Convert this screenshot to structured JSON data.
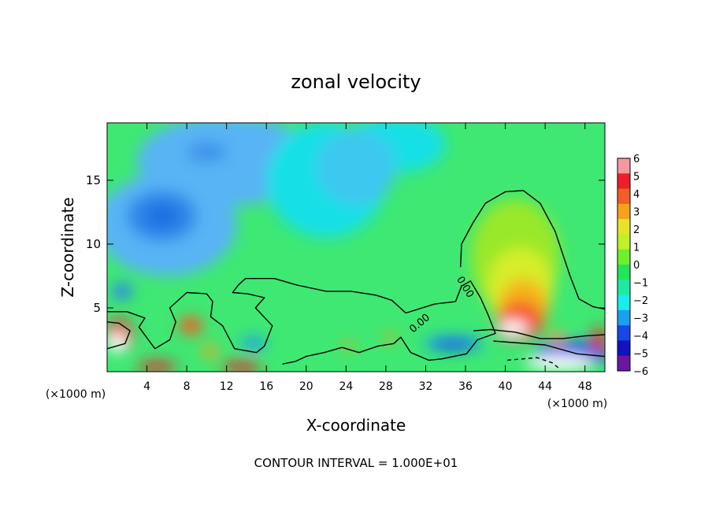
{
  "chart_data": {
    "type": "heatmap",
    "title": "zonal velocity",
    "xlabel": "X-coordinate",
    "ylabel": "Z-coordinate",
    "x_unit_left": "(×1000 m)",
    "x_unit_right": "(×1000 m)",
    "xlim": [
      0,
      50
    ],
    "ylim": [
      0,
      19.5
    ],
    "x_ticks": [
      4,
      8,
      12,
      16,
      20,
      24,
      28,
      32,
      36,
      40,
      44,
      48
    ],
    "y_ticks": [
      5,
      10,
      15
    ],
    "footer": "CONTOUR INTERVAL = 1.000E+01",
    "contour_labels": [
      {
        "text": "0.00",
        "x": 31.6,
        "y": 3.6,
        "angle": -40
      },
      {
        "text": "0.00",
        "x": 35.7,
        "y": 6.5,
        "angle": 58
      }
    ],
    "colorbar": {
      "ticks": [
        "6",
        "5",
        "4",
        "3",
        "2",
        "1",
        "0",
        "−1",
        "−2",
        "−3",
        "−4",
        "−5",
        "−6"
      ],
      "colors": [
        "#f39aa0",
        "#ee1f2a",
        "#f35d28",
        "#f7a21a",
        "#e7e32a",
        "#bff02a",
        "#6ef02a",
        "#22e45a",
        "#1fe9a0",
        "#19ecea",
        "#1b9ff0",
        "#1548e6",
        "#1212c2",
        "#6a16a0"
      ]
    },
    "blobs": [
      {
        "x": 6,
        "y": 11.5,
        "rx": 7,
        "ry": 4,
        "color": "#58b4f5"
      },
      {
        "x": 12,
        "y": 16.5,
        "rx": 9,
        "ry": 3.5,
        "color": "#58b4f5"
      },
      {
        "x": 5.5,
        "y": 12.2,
        "rx": 3.5,
        "ry": 2,
        "color": "#2f86e8"
      },
      {
        "x": 5.5,
        "y": 12.2,
        "rx": 1.6,
        "ry": 0.9,
        "color": "#1f6de0"
      },
      {
        "x": 10,
        "y": 17.2,
        "rx": 2,
        "ry": 0.8,
        "color": "#3e93ea"
      },
      {
        "x": 1.5,
        "y": 6.3,
        "rx": 1.0,
        "ry": 0.7,
        "color": "#2f86e8"
      },
      {
        "x": 22,
        "y": 15,
        "rx": 6,
        "ry": 4.5,
        "color": "#19e0e6"
      },
      {
        "x": 29,
        "y": 17.8,
        "rx": 5,
        "ry": 2.2,
        "color": "#19e0e6"
      },
      {
        "x": 25,
        "y": 16,
        "rx": 4,
        "ry": 3,
        "color": "#3ec8f0"
      },
      {
        "x": 41,
        "y": 9,
        "rx": 4.5,
        "ry": 4.5,
        "color": "#9ae82a"
      },
      {
        "x": 41.5,
        "y": 6.5,
        "rx": 3.3,
        "ry": 3.2,
        "color": "#d6ee2a"
      },
      {
        "x": 41.8,
        "y": 5.0,
        "rx": 2.5,
        "ry": 2.3,
        "color": "#f5b21a"
      },
      {
        "x": 41.5,
        "y": 4.0,
        "rx": 2.3,
        "ry": 1.5,
        "color": "#f55a28"
      },
      {
        "x": 41,
        "y": 3.3,
        "rx": 2.0,
        "ry": 0.9,
        "color": "#ee1f2a"
      },
      {
        "x": 40.8,
        "y": 3.4,
        "rx": 1.5,
        "ry": 0.6,
        "color": "#ffffff"
      },
      {
        "x": 34.8,
        "y": 2.2,
        "rx": 3.0,
        "ry": 0.6,
        "color": "#1b9ff0"
      },
      {
        "x": 34.8,
        "y": 2.1,
        "rx": 2.1,
        "ry": 0.35,
        "color": "#1548e6"
      },
      {
        "x": 1.2,
        "y": 2.8,
        "rx": 1.4,
        "ry": 1.3,
        "color": "#ee1f2a"
      },
      {
        "x": 1.0,
        "y": 2.3,
        "rx": 1.0,
        "ry": 0.8,
        "color": "#ffffff"
      },
      {
        "x": 8.4,
        "y": 3.6,
        "rx": 1.2,
        "ry": 0.7,
        "color": "#f35d28"
      },
      {
        "x": 10.3,
        "y": 1.6,
        "rx": 0.8,
        "ry": 0.5,
        "color": "#f7a21a"
      },
      {
        "x": 14.7,
        "y": 2.2,
        "rx": 1.3,
        "ry": 0.5,
        "color": "#1b9ff0"
      },
      {
        "x": 5.0,
        "y": 0.4,
        "rx": 2.0,
        "ry": 0.4,
        "color": "#ee1f2a"
      },
      {
        "x": 13.5,
        "y": 0.4,
        "rx": 2.0,
        "ry": 0.4,
        "color": "#ee1f2a"
      },
      {
        "x": 24.2,
        "y": 2.0,
        "rx": 0.6,
        "ry": 0.3,
        "color": "#f7a21a"
      },
      {
        "x": 28.4,
        "y": 2.6,
        "rx": 0.5,
        "ry": 0.4,
        "color": "#f7a21a"
      },
      {
        "x": 46.8,
        "y": 1.4,
        "rx": 3.8,
        "ry": 1.0,
        "color": "#1548e6"
      },
      {
        "x": 45.5,
        "y": 0.7,
        "rx": 3.5,
        "ry": 0.6,
        "color": "#ffffff"
      },
      {
        "x": 49.4,
        "y": 2.5,
        "rx": 0.7,
        "ry": 1.0,
        "color": "#ee1f2a"
      },
      {
        "x": 45.2,
        "y": 2.6,
        "rx": 0.9,
        "ry": 0.5,
        "color": "#f7a21a"
      }
    ],
    "contours": [
      {
        "style": "solid",
        "points": [
          [
            0,
            4.7
          ],
          [
            2,
            4.7
          ],
          [
            3.8,
            4.2
          ],
          [
            3.2,
            3.5
          ],
          [
            4.8,
            1.8
          ],
          [
            6.3,
            2.5
          ],
          [
            6.9,
            3.9
          ],
          [
            6.3,
            5
          ],
          [
            8,
            6.2
          ],
          [
            10,
            6.1
          ],
          [
            10.6,
            5.5
          ],
          [
            10.4,
            4.3
          ],
          [
            11.6,
            3.6
          ],
          [
            12.8,
            1.8
          ],
          [
            15,
            1.5
          ],
          [
            15.8,
            2
          ],
          [
            16.6,
            3.6
          ],
          [
            14.9,
            5
          ],
          [
            15.8,
            5.8
          ],
          [
            14.1,
            6.1
          ],
          [
            12.6,
            6.2
          ],
          [
            13.2,
            6.8
          ],
          [
            13.9,
            7.3
          ],
          [
            16.8,
            7.3
          ],
          [
            19,
            6.8
          ],
          [
            22,
            6.3
          ],
          [
            24.5,
            6.3
          ],
          [
            27,
            6
          ],
          [
            28.6,
            5.6
          ],
          [
            30,
            4.6
          ],
          [
            32.9,
            5.3
          ],
          [
            35,
            5.5
          ],
          [
            35.6,
            6.7
          ],
          [
            36.5,
            7.1
          ],
          [
            37.5,
            5.8
          ],
          [
            38.3,
            4.4
          ],
          [
            39,
            3
          ],
          [
            37.2,
            2.5
          ],
          [
            36.1,
            1.4
          ],
          [
            33.6,
            1
          ],
          [
            32.3,
            0.9
          ],
          [
            30.5,
            1.5
          ],
          [
            29.5,
            2.7
          ],
          [
            28.8,
            2.2
          ],
          [
            27.2,
            2
          ],
          [
            25.3,
            1.5
          ],
          [
            23.6,
            1.9
          ],
          [
            21.8,
            1.5
          ],
          [
            20,
            1.2
          ],
          [
            18.9,
            0.8
          ],
          [
            17.6,
            0.6
          ]
        ]
      },
      {
        "style": "solid",
        "points": [
          [
            0,
            3.9
          ],
          [
            1.2,
            3.8
          ],
          [
            2.3,
            3.2
          ],
          [
            1.8,
            2.2
          ],
          [
            0,
            1.8
          ]
        ]
      },
      {
        "style": "solid",
        "points": [
          [
            35.5,
            8.2
          ],
          [
            35.6,
            10
          ],
          [
            36.7,
            11.6
          ],
          [
            38,
            13.2
          ],
          [
            40,
            14.1
          ],
          [
            41.8,
            14.2
          ],
          [
            43.5,
            13.2
          ],
          [
            45,
            11
          ],
          [
            46.5,
            7.5
          ],
          [
            47.4,
            5.7
          ],
          [
            48.8,
            5.1
          ],
          [
            50,
            4.9
          ]
        ]
      },
      {
        "style": "solid",
        "points": [
          [
            38.8,
            2.4
          ],
          [
            44,
            2.1
          ],
          [
            47.2,
            1.4
          ],
          [
            50,
            1.2
          ]
        ]
      },
      {
        "style": "solid",
        "points": [
          [
            36.8,
            3.2
          ],
          [
            38.5,
            3.3
          ],
          [
            41,
            3.1
          ],
          [
            43.5,
            2.6
          ],
          [
            45.8,
            2.6
          ],
          [
            48,
            2.8
          ],
          [
            50,
            2.9
          ]
        ]
      },
      {
        "style": "dashed",
        "points": [
          [
            40.2,
            0.9
          ],
          [
            43.2,
            1.1
          ],
          [
            44.7,
            0.7
          ],
          [
            45.5,
            0.2
          ]
        ]
      }
    ]
  }
}
